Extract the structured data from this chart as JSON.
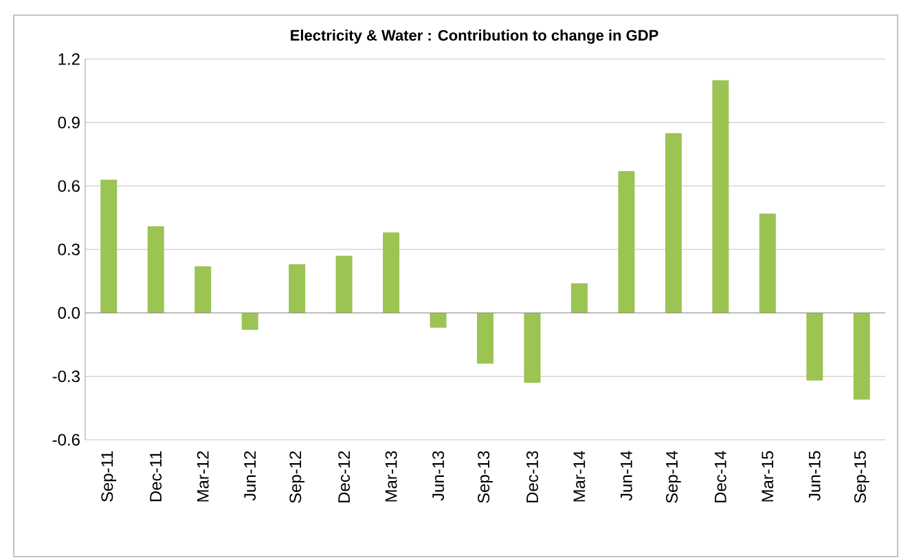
{
  "chart_data": {
    "type": "bar",
    "title": "Electricity & Water : Contribution to change in GDP",
    "categories": [
      "Sep-11",
      "Dec-11",
      "Mar-12",
      "Jun-12",
      "Sep-12",
      "Dec-12",
      "Mar-13",
      "Jun-13",
      "Sep-13",
      "Dec-13",
      "Mar-14",
      "Jun-14",
      "Sep-14",
      "Dec-14",
      "Mar-15",
      "Jun-15",
      "Sep-15"
    ],
    "values": [
      0.63,
      0.41,
      0.22,
      -0.08,
      0.23,
      0.27,
      0.38,
      -0.07,
      -0.24,
      -0.33,
      0.14,
      0.67,
      0.85,
      1.1,
      0.47,
      -0.32,
      -0.41
    ],
    "color": "#9bc453",
    "ylim": [
      -0.6,
      1.2
    ],
    "yticks": [
      {
        "value": -0.6,
        "label": "-0.6"
      },
      {
        "value": -0.3,
        "label": "-0.3"
      },
      {
        "value": 0,
        "label": "0.0"
      },
      {
        "value": 0.3,
        "label": "0.3"
      },
      {
        "value": 0.6,
        "label": "0.6"
      },
      {
        "value": 0.9,
        "label": "0.9"
      },
      {
        "value": 1.2,
        "label": "1.2"
      }
    ],
    "grid": "y"
  }
}
